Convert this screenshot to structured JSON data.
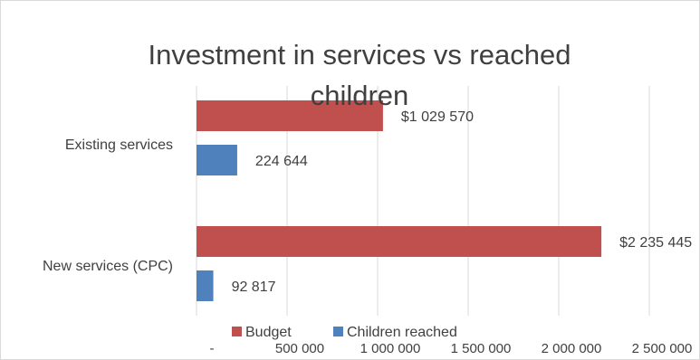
{
  "chart_data": {
    "type": "bar",
    "orientation": "horizontal",
    "title_lines": [
      "Investment in services vs reached",
      "children"
    ],
    "categories": [
      "Existing services",
      "New services (CPC)"
    ],
    "series": [
      {
        "name": "Budget",
        "color": "#c0504d",
        "values": [
          1029570,
          2235445
        ],
        "labels": [
          "$1 029 570",
          "$2 235 445"
        ]
      },
      {
        "name": "Children reached",
        "color": "#4f81bd",
        "values": [
          224644,
          92817
        ],
        "labels": [
          "224 644",
          "92 817"
        ]
      }
    ],
    "x_ticks": [
      {
        "value": 0,
        "label": "-"
      },
      {
        "value": 500000,
        "label": "500 000"
      },
      {
        "value": 1000000,
        "label": "1 000 000"
      },
      {
        "value": 1500000,
        "label": "1 500 000"
      },
      {
        "value": 2000000,
        "label": "2 000 000"
      },
      {
        "value": 2500000,
        "label": "2 500 000"
      }
    ],
    "xlim": [
      0,
      2500000
    ],
    "grid": true,
    "legend_position": "bottom"
  }
}
